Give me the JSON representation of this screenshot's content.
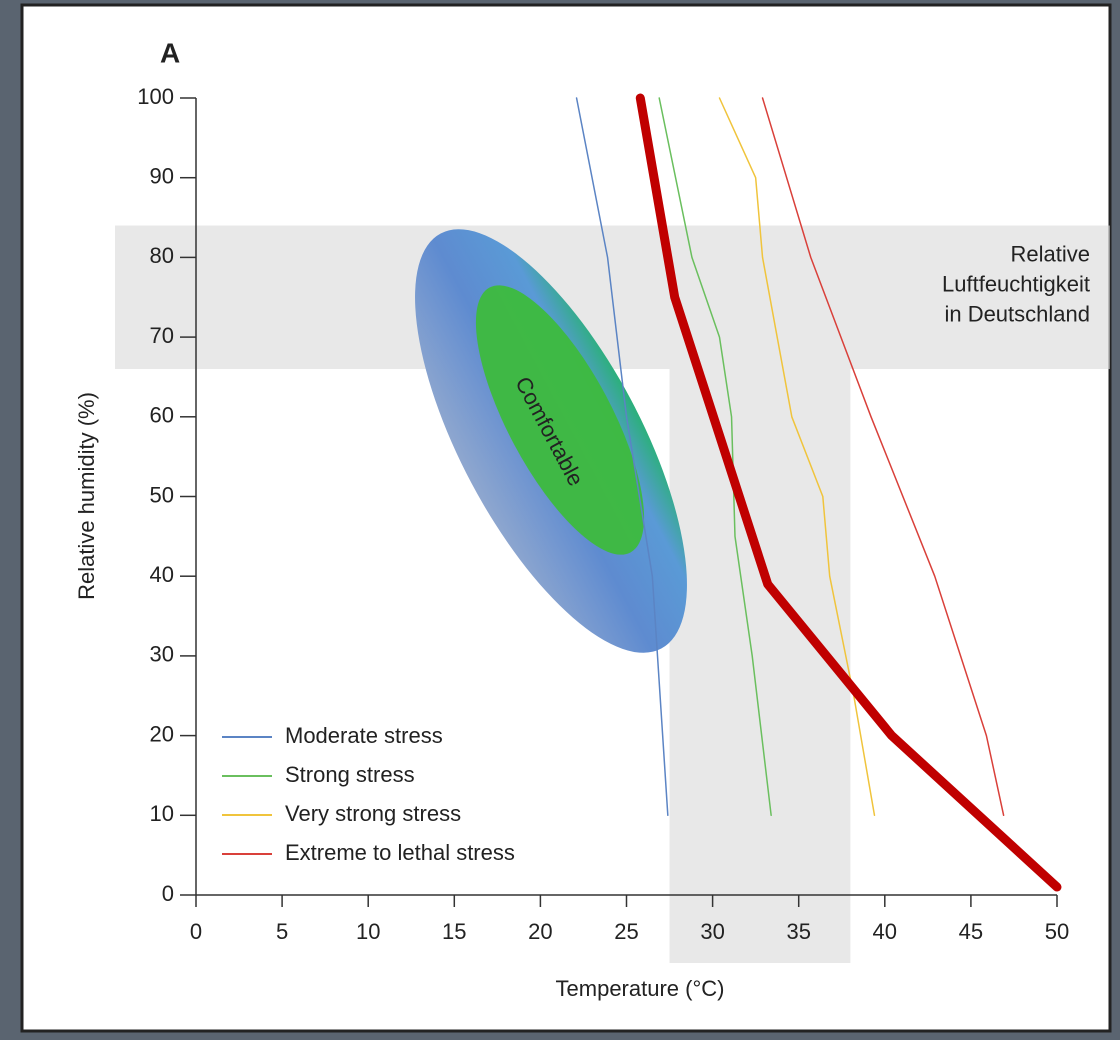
{
  "chart_data": {
    "type": "line",
    "panel_label": "A",
    "xlabel": "Temperature (°C)",
    "ylabel": "Relative humidity (%)",
    "xlim": [
      0,
      50
    ],
    "ylim": [
      0,
      100
    ],
    "xticks": [
      0,
      5,
      10,
      15,
      20,
      25,
      30,
      35,
      40,
      45,
      50
    ],
    "yticks": [
      0,
      10,
      20,
      30,
      40,
      50,
      60,
      70,
      80,
      90,
      100
    ],
    "legend": "lower left",
    "comfort_label": "Comfortable",
    "series": [
      {
        "name": "Moderate stress",
        "color": "#5b84c4",
        "width": 1.5,
        "x": [
          22.1,
          23.9,
          25.0,
          26.5,
          27.4
        ],
        "values": [
          100,
          80,
          60,
          40,
          10
        ]
      },
      {
        "name": "Strong stress",
        "color": "#6abf5e",
        "width": 1.5,
        "x": [
          26.9,
          28.8,
          30.4,
          31.1,
          31.3,
          32.3,
          33.4
        ],
        "values": [
          100,
          80,
          70,
          60,
          45,
          30,
          10
        ]
      },
      {
        "name": "Very strong stress",
        "color": "#f0c43c",
        "width": 1.5,
        "x": [
          30.4,
          32.5,
          32.9,
          34.6,
          36.4,
          36.8,
          38.2,
          39.4
        ],
        "values": [
          100,
          90,
          80,
          60,
          50,
          40,
          25,
          10
        ]
      },
      {
        "name": "Extreme to lethal stress",
        "color": "#d9403a",
        "width": 1.5,
        "x": [
          32.9,
          35.7,
          39.2,
          42.9,
          45.9,
          46.9
        ],
        "values": [
          100,
          80,
          60,
          40,
          20,
          10
        ]
      },
      {
        "color": "#c00000",
        "width": 9,
        "x": [
          25.8,
          27.8,
          33.2,
          40.4,
          50
        ],
        "values": [
          100,
          75,
          39,
          20,
          1
        ]
      }
    ],
    "bands": [
      {
        "axis": "y",
        "range": [
          66,
          84
        ],
        "label": [
          "Relative",
          "Luftfeuchtigkeit",
          "in Deutschland"
        ]
      },
      {
        "axis": "x",
        "range": [
          27.5,
          38
        ]
      }
    ]
  }
}
